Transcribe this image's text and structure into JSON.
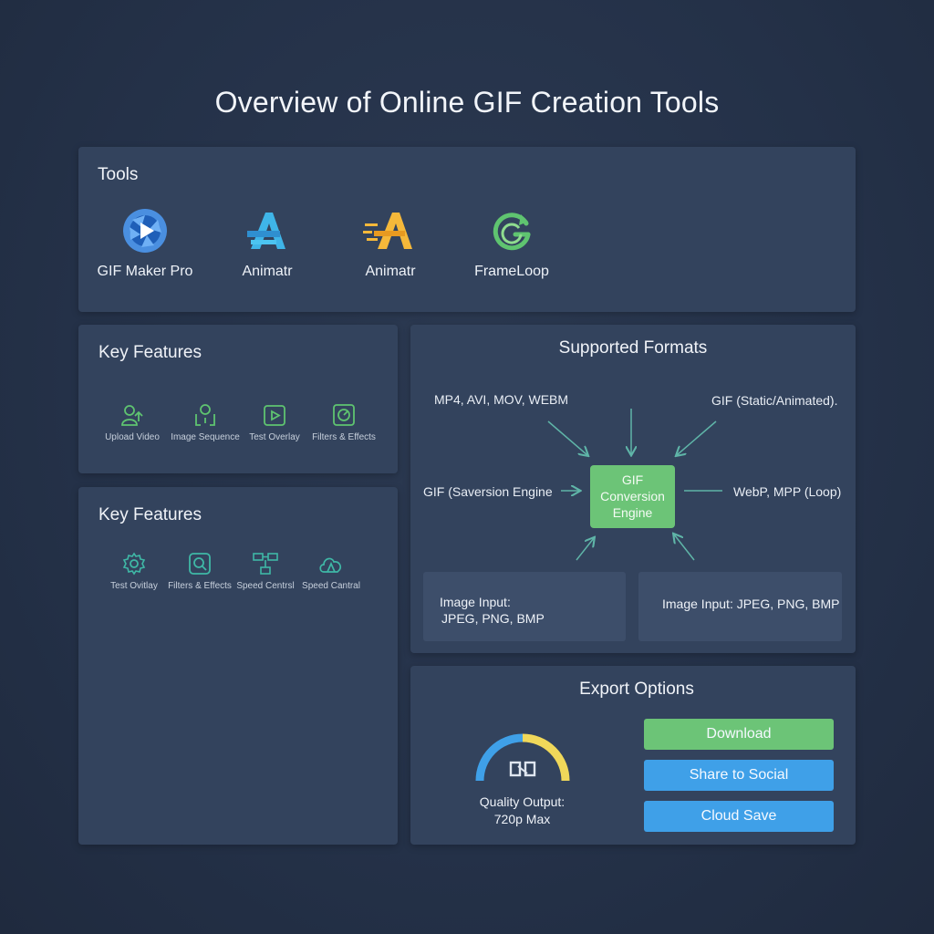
{
  "title": "Overview of Online GIF Creation Tools",
  "tools": {
    "heading": "Tools",
    "items": [
      {
        "label": "GIF Maker Pro",
        "icon": "play-aperture-icon",
        "color": "#4a90e2"
      },
      {
        "label": "Animatr",
        "icon": "letter-a-icon",
        "color": "#3fb5e8"
      },
      {
        "label": "Animatr",
        "icon": "speed-letter-a-icon",
        "color": "#f5b83a"
      },
      {
        "label": "FrameLoop",
        "icon": "loop-g-icon",
        "color": "#5fc470"
      }
    ]
  },
  "features_top": {
    "heading": "Key Features",
    "items": [
      {
        "label": "Upload Video",
        "icon": "upload-person-icon"
      },
      {
        "label": "Image Sequence",
        "icon": "image-sequence-icon"
      },
      {
        "label": "Test Overlay",
        "icon": "overlay-icon"
      },
      {
        "label": "Filters & Effects",
        "icon": "filter-icon"
      }
    ],
    "icon_color": "#5fc470"
  },
  "features_bottom": {
    "heading": "Key Features",
    "items": [
      {
        "label": "Test Ovitlay",
        "icon": "gear-icon"
      },
      {
        "label": "Filters & Effects",
        "icon": "filter-search-icon"
      },
      {
        "label": "Speed Centrsl",
        "icon": "flowchart-icon"
      },
      {
        "label": "Speed Cantral",
        "icon": "cloud-speed-icon"
      }
    ],
    "icon_color": "#3fb8a6"
  },
  "formats": {
    "heading": "Supported Formats",
    "video_input": "MP4, AVI, MOV, WEBM",
    "gif_output": "GIF (Static/Animated).",
    "gif_input": "GIF (Saversion Engine",
    "engine_lines": [
      "GIF",
      "Conversion",
      "Engine"
    ],
    "web_output": "WebP, MPP (Loop)",
    "image_input_left_lines": [
      "Image Input:",
      "JPEG, PNG, BMP"
    ],
    "image_input_right": "Image Input: JPEG, PNG, BMP",
    "arrow_color": "#5fb5a8"
  },
  "export": {
    "heading": "Export Options",
    "gauge_icon": "quality-gauge-icon",
    "quality_lines": [
      "Quality Output:",
      "720p Max"
    ],
    "buttons": [
      {
        "label": "Download",
        "color": "#6cc477"
      },
      {
        "label": "Share to Social",
        "color": "#3fa0e8"
      },
      {
        "label": "Cloud Save",
        "color": "#3fa0e8"
      }
    ]
  }
}
